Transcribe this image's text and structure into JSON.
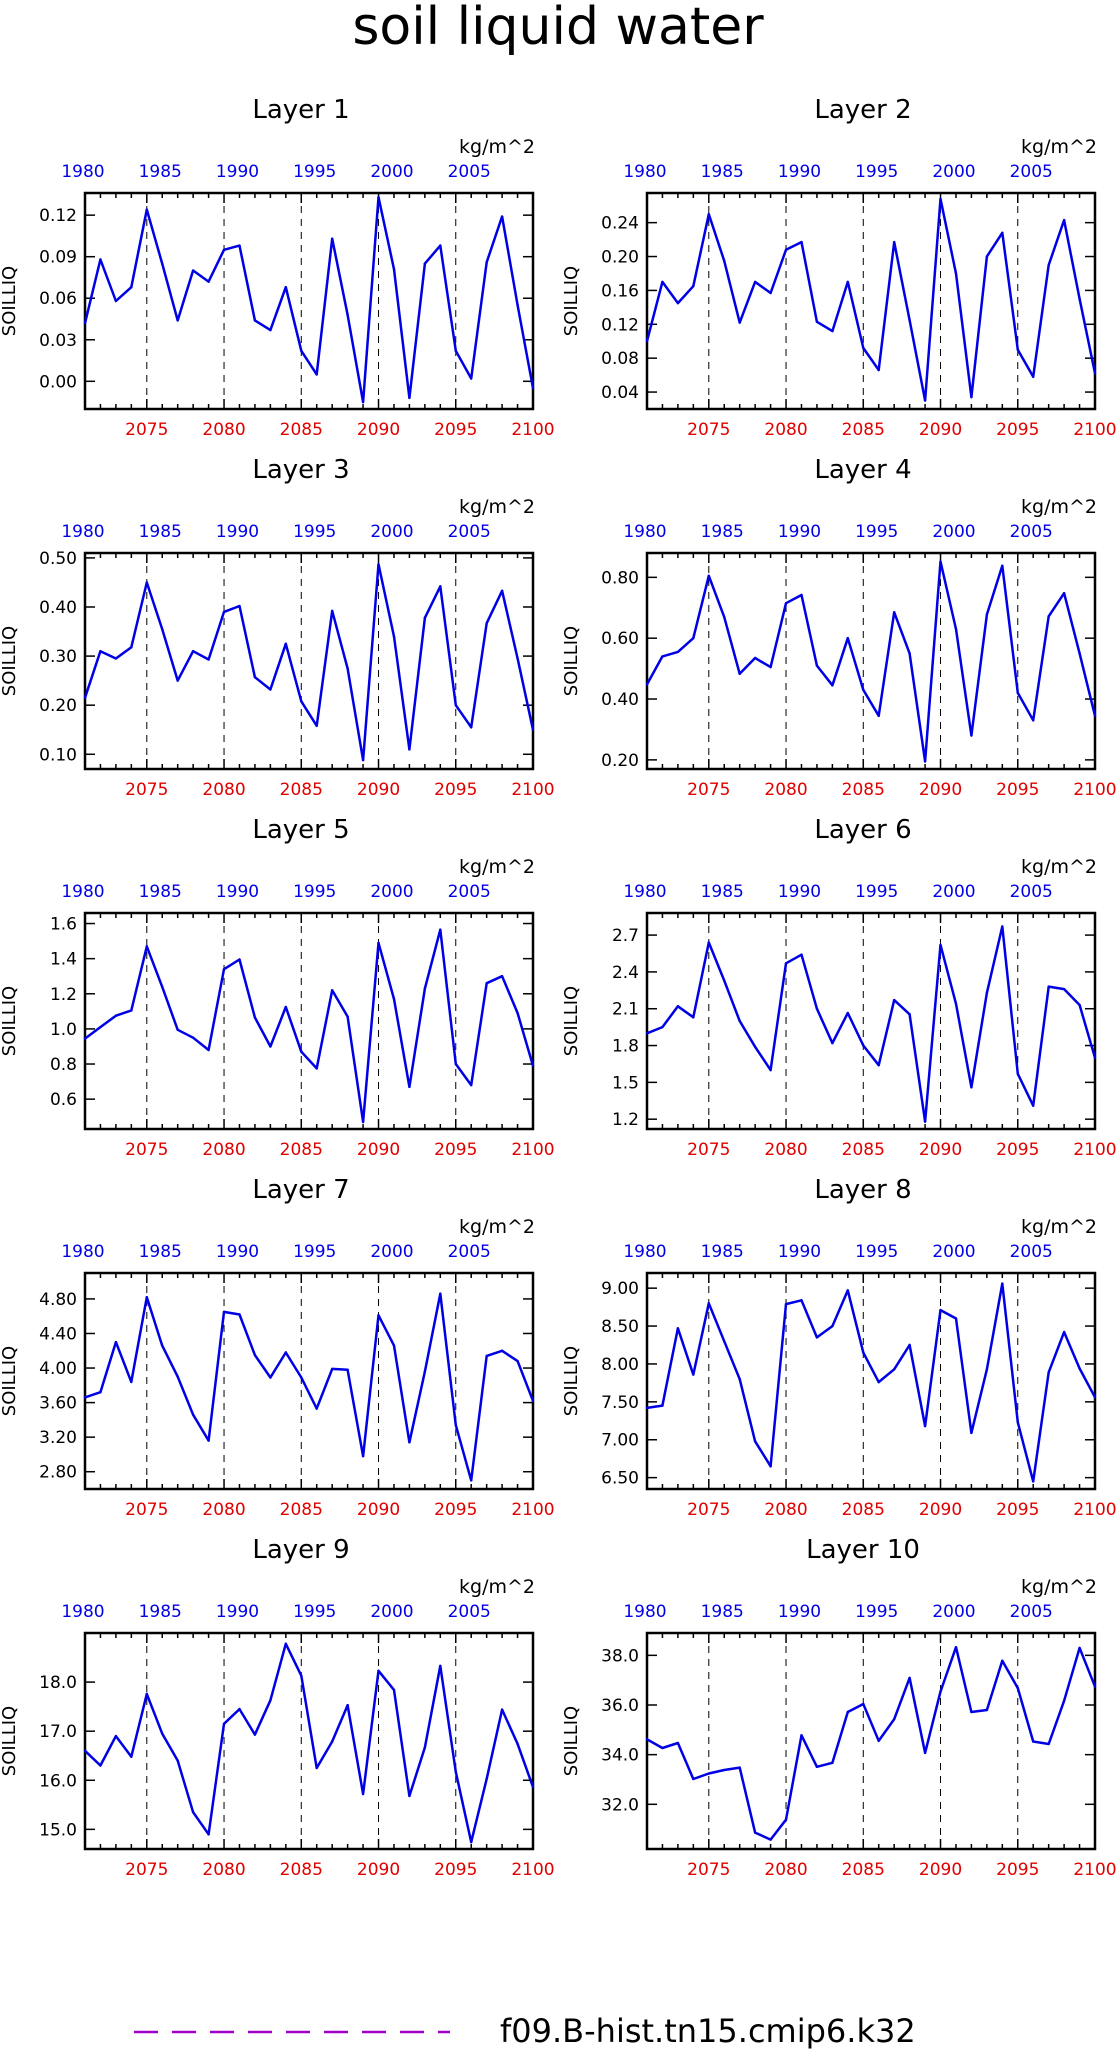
{
  "title": "soil liquid water",
  "legend": {
    "label": "f09.B-hist.tn15.cmip6.k32",
    "color": "#a000c8",
    "position": "bottom"
  },
  "colors": {
    "line": "#0000e6",
    "top_axis": "#0000e6",
    "bottom_axis": "#e00000",
    "frame": "#000000"
  },
  "chart_data": [
    {
      "type": "line",
      "title": "Layer 1",
      "ylabel": "SOILLIQ",
      "units": "kg/m^2",
      "x_bottom_ticks": [
        2075,
        2080,
        2085,
        2090,
        2095,
        2100
      ],
      "x_top_ticks": [
        1980,
        1985,
        1990,
        1995,
        2000,
        2005
      ],
      "xlim": [
        2071,
        2100
      ],
      "ylim": [
        -0.02,
        0.136
      ],
      "yticks": [
        "0.12",
        "0.09",
        "0.06",
        "0.03",
        "0.00"
      ],
      "ytick_values": [
        0.12,
        0.09,
        0.06,
        0.03,
        0.0
      ],
      "x": [
        2071,
        2072,
        2073,
        2074,
        2075,
        2076,
        2077,
        2078,
        2079,
        2080,
        2081,
        2082,
        2083,
        2084,
        2085,
        2086,
        2087,
        2088,
        2089,
        2090,
        2091,
        2092,
        2093,
        2094,
        2095,
        2096,
        2097,
        2098,
        2099,
        2100
      ],
      "values": [
        0.042,
        0.088,
        0.058,
        0.068,
        0.124,
        0.085,
        0.044,
        0.08,
        0.072,
        0.095,
        0.098,
        0.044,
        0.037,
        0.068,
        0.022,
        0.005,
        0.103,
        0.048,
        -0.015,
        0.133,
        0.081,
        -0.012,
        0.085,
        0.098,
        0.022,
        0.002,
        0.086,
        0.119,
        0.055,
        -0.005
      ],
      "dashed_x": [
        2075,
        2080,
        2085,
        2090,
        2095
      ],
      "grid": false
    },
    {
      "type": "line",
      "title": "Layer 2",
      "ylabel": "SOILLIQ",
      "units": "kg/m^2",
      "x_bottom_ticks": [
        2075,
        2080,
        2085,
        2090,
        2095,
        2100
      ],
      "x_top_ticks": [
        1980,
        1985,
        1990,
        1995,
        2000,
        2005
      ],
      "xlim": [
        2071,
        2100
      ],
      "ylim": [
        0.02,
        0.275
      ],
      "yticks": [
        "0.24",
        "0.20",
        "0.16",
        "0.12",
        "0.08",
        "0.04"
      ],
      "ytick_values": [
        0.24,
        0.2,
        0.16,
        0.12,
        0.08,
        0.04
      ],
      "x": [
        2071,
        2072,
        2073,
        2074,
        2075,
        2076,
        2077,
        2078,
        2079,
        2080,
        2081,
        2082,
        2083,
        2084,
        2085,
        2086,
        2087,
        2088,
        2089,
        2090,
        2091,
        2092,
        2093,
        2094,
        2095,
        2096,
        2097,
        2098,
        2099,
        2100
      ],
      "values": [
        0.1,
        0.17,
        0.145,
        0.165,
        0.25,
        0.195,
        0.122,
        0.17,
        0.157,
        0.208,
        0.217,
        0.123,
        0.112,
        0.17,
        0.092,
        0.066,
        0.217,
        0.125,
        0.03,
        0.268,
        0.18,
        0.034,
        0.2,
        0.228,
        0.09,
        0.058,
        0.19,
        0.243,
        0.15,
        0.062
      ],
      "dashed_x": [
        2075,
        2080,
        2085,
        2090,
        2095
      ],
      "grid": false
    },
    {
      "type": "line",
      "title": "Layer 3",
      "ylabel": "SOILLIQ",
      "units": "kg/m^2",
      "x_bottom_ticks": [
        2075,
        2080,
        2085,
        2090,
        2095,
        2100
      ],
      "x_top_ticks": [
        1980,
        1985,
        1990,
        1995,
        2000,
        2005
      ],
      "xlim": [
        2071,
        2100
      ],
      "ylim": [
        0.07,
        0.51
      ],
      "yticks": [
        "0.50",
        "0.40",
        "0.30",
        "0.20",
        "0.10"
      ],
      "ytick_values": [
        0.5,
        0.4,
        0.3,
        0.2,
        0.1
      ],
      "x": [
        2071,
        2072,
        2073,
        2074,
        2075,
        2076,
        2077,
        2078,
        2079,
        2080,
        2081,
        2082,
        2083,
        2084,
        2085,
        2086,
        2087,
        2088,
        2089,
        2090,
        2091,
        2092,
        2093,
        2094,
        2095,
        2096,
        2097,
        2098,
        2099,
        2100
      ],
      "values": [
        0.215,
        0.31,
        0.295,
        0.318,
        0.45,
        0.355,
        0.25,
        0.31,
        0.293,
        0.39,
        0.402,
        0.257,
        0.232,
        0.325,
        0.208,
        0.158,
        0.392,
        0.275,
        0.088,
        0.487,
        0.34,
        0.11,
        0.378,
        0.442,
        0.2,
        0.155,
        0.367,
        0.433,
        0.295,
        0.15
      ],
      "dashed_x": [
        2075,
        2080,
        2085,
        2090,
        2095
      ],
      "grid": false
    },
    {
      "type": "line",
      "title": "Layer 4",
      "ylabel": "SOILLIQ",
      "units": "kg/m^2",
      "x_bottom_ticks": [
        2075,
        2080,
        2085,
        2090,
        2095,
        2100
      ],
      "x_top_ticks": [
        1980,
        1985,
        1990,
        1995,
        2000,
        2005
      ],
      "xlim": [
        2071,
        2100
      ],
      "ylim": [
        0.17,
        0.88
      ],
      "yticks": [
        "0.80",
        "0.60",
        "0.40",
        "0.20"
      ],
      "ytick_values": [
        0.8,
        0.6,
        0.4,
        0.2
      ],
      "x": [
        2071,
        2072,
        2073,
        2074,
        2075,
        2076,
        2077,
        2078,
        2079,
        2080,
        2081,
        2082,
        2083,
        2084,
        2085,
        2086,
        2087,
        2088,
        2089,
        2090,
        2091,
        2092,
        2093,
        2094,
        2095,
        2096,
        2097,
        2098,
        2099,
        2100
      ],
      "values": [
        0.448,
        0.54,
        0.555,
        0.6,
        0.805,
        0.67,
        0.483,
        0.535,
        0.505,
        0.715,
        0.742,
        0.51,
        0.445,
        0.6,
        0.43,
        0.345,
        0.685,
        0.55,
        0.195,
        0.852,
        0.63,
        0.28,
        0.678,
        0.838,
        0.42,
        0.33,
        0.672,
        0.748,
        0.55,
        0.345
      ],
      "dashed_x": [
        2075,
        2080,
        2085,
        2090,
        2095
      ],
      "grid": false
    },
    {
      "type": "line",
      "title": "Layer 5",
      "ylabel": "SOILLIQ",
      "units": "kg/m^2",
      "x_bottom_ticks": [
        2075,
        2080,
        2085,
        2090,
        2095,
        2100
      ],
      "x_top_ticks": [
        1980,
        1985,
        1990,
        1995,
        2000,
        2005
      ],
      "xlim": [
        2071,
        2100
      ],
      "ylim": [
        0.43,
        1.66
      ],
      "yticks": [
        "1.6",
        "1.4",
        "1.2",
        "1.0",
        "0.8",
        "0.6"
      ],
      "ytick_values": [
        1.6,
        1.4,
        1.2,
        1.0,
        0.8,
        0.6
      ],
      "x": [
        2071,
        2072,
        2073,
        2074,
        2075,
        2076,
        2077,
        2078,
        2079,
        2080,
        2081,
        2082,
        2083,
        2084,
        2085,
        2086,
        2087,
        2088,
        2089,
        2090,
        2091,
        2092,
        2093,
        2094,
        2095,
        2096,
        2097,
        2098,
        2099,
        2100
      ],
      "values": [
        0.945,
        1.01,
        1.075,
        1.105,
        1.47,
        1.24,
        0.995,
        0.95,
        0.88,
        1.34,
        1.395,
        1.065,
        0.9,
        1.125,
        0.87,
        0.775,
        1.22,
        1.07,
        0.47,
        1.49,
        1.17,
        0.67,
        1.23,
        1.565,
        0.8,
        0.68,
        1.26,
        1.3,
        1.09,
        0.79
      ],
      "dashed_x": [
        2075,
        2080,
        2085,
        2090,
        2095
      ],
      "grid": false
    },
    {
      "type": "line",
      "title": "Layer 6",
      "ylabel": "SOILLIQ",
      "units": "kg/m^2",
      "x_bottom_ticks": [
        2075,
        2080,
        2085,
        2090,
        2095,
        2100
      ],
      "x_top_ticks": [
        1980,
        1985,
        1990,
        1995,
        2000,
        2005
      ],
      "xlim": [
        2071,
        2100
      ],
      "ylim": [
        1.12,
        2.88
      ],
      "yticks": [
        "2.7",
        "2.4",
        "2.1",
        "1.8",
        "1.5",
        "1.2"
      ],
      "ytick_values": [
        2.7,
        2.4,
        2.1,
        1.8,
        1.5,
        1.2
      ],
      "x": [
        2071,
        2072,
        2073,
        2074,
        2075,
        2076,
        2077,
        2078,
        2079,
        2080,
        2081,
        2082,
        2083,
        2084,
        2085,
        2086,
        2087,
        2088,
        2089,
        2090,
        2091,
        2092,
        2093,
        2094,
        2095,
        2096,
        2097,
        2098,
        2099,
        2100
      ],
      "values": [
        1.9,
        1.95,
        2.12,
        2.03,
        2.64,
        2.33,
        2.0,
        1.79,
        1.6,
        2.47,
        2.54,
        2.1,
        1.82,
        2.065,
        1.8,
        1.64,
        2.17,
        2.055,
        1.18,
        2.62,
        2.14,
        1.46,
        2.23,
        2.77,
        1.57,
        1.31,
        2.28,
        2.26,
        2.13,
        1.7
      ],
      "dashed_x": [
        2075,
        2080,
        2085,
        2090,
        2095
      ],
      "grid": false
    },
    {
      "type": "line",
      "title": "Layer 7",
      "ylabel": "SOILLIQ",
      "units": "kg/m^2",
      "x_bottom_ticks": [
        2075,
        2080,
        2085,
        2090,
        2095,
        2100
      ],
      "x_top_ticks": [
        1980,
        1985,
        1990,
        1995,
        2000,
        2005
      ],
      "xlim": [
        2071,
        2100
      ],
      "ylim": [
        2.6,
        5.1
      ],
      "yticks": [
        "4.80",
        "4.40",
        "4.00",
        "3.60",
        "3.20",
        "2.80"
      ],
      "ytick_values": [
        4.8,
        4.4,
        4.0,
        3.6,
        3.2,
        2.8
      ],
      "x": [
        2071,
        2072,
        2073,
        2074,
        2075,
        2076,
        2077,
        2078,
        2079,
        2080,
        2081,
        2082,
        2083,
        2084,
        2085,
        2086,
        2087,
        2088,
        2089,
        2090,
        2091,
        2092,
        2093,
        2094,
        2095,
        2096,
        2097,
        2098,
        2099,
        2100
      ],
      "values": [
        3.66,
        3.72,
        4.3,
        3.84,
        4.82,
        4.26,
        3.9,
        3.46,
        3.16,
        4.65,
        4.62,
        4.15,
        3.89,
        4.18,
        3.89,
        3.53,
        3.99,
        3.98,
        2.98,
        4.61,
        4.26,
        3.14,
        3.96,
        4.86,
        3.34,
        2.7,
        4.14,
        4.2,
        4.08,
        3.62
      ],
      "dashed_x": [
        2075,
        2080,
        2085,
        2090,
        2095
      ],
      "grid": false
    },
    {
      "type": "line",
      "title": "Layer 8",
      "ylabel": "SOILLIQ",
      "units": "kg/m^2",
      "x_bottom_ticks": [
        2075,
        2080,
        2085,
        2090,
        2095,
        2100
      ],
      "x_top_ticks": [
        1980,
        1985,
        1990,
        1995,
        2000,
        2005
      ],
      "xlim": [
        2071,
        2100
      ],
      "ylim": [
        6.35,
        9.2
      ],
      "yticks": [
        "9.00",
        "8.50",
        "8.00",
        "7.50",
        "7.00",
        "6.50"
      ],
      "ytick_values": [
        9.0,
        8.5,
        8.0,
        7.5,
        7.0,
        6.5
      ],
      "x": [
        2071,
        2072,
        2073,
        2074,
        2075,
        2076,
        2077,
        2078,
        2079,
        2080,
        2081,
        2082,
        2083,
        2084,
        2085,
        2086,
        2087,
        2088,
        2089,
        2090,
        2091,
        2092,
        2093,
        2094,
        2095,
        2096,
        2097,
        2098,
        2099,
        2100
      ],
      "values": [
        7.42,
        7.45,
        8.47,
        7.86,
        8.8,
        8.3,
        7.8,
        6.98,
        6.65,
        8.79,
        8.84,
        8.35,
        8.5,
        8.97,
        8.15,
        7.76,
        7.93,
        8.25,
        7.18,
        8.71,
        8.6,
        7.09,
        7.93,
        9.06,
        7.23,
        6.45,
        7.89,
        8.42,
        7.94,
        7.56
      ],
      "dashed_x": [
        2075,
        2080,
        2085,
        2090,
        2095
      ],
      "grid": false
    },
    {
      "type": "line",
      "title": "Layer 9",
      "ylabel": "SOILLIQ",
      "units": "kg/m^2",
      "x_bottom_ticks": [
        2075,
        2080,
        2085,
        2090,
        2095,
        2100
      ],
      "x_top_ticks": [
        1980,
        1985,
        1990,
        1995,
        2000,
        2005
      ],
      "xlim": [
        2071,
        2100
      ],
      "ylim": [
        14.6,
        19.0
      ],
      "yticks": [
        "18.0",
        "17.0",
        "16.0",
        "15.0"
      ],
      "ytick_values": [
        18.0,
        17.0,
        16.0,
        15.0
      ],
      "x": [
        2071,
        2072,
        2073,
        2074,
        2075,
        2076,
        2077,
        2078,
        2079,
        2080,
        2081,
        2082,
        2083,
        2084,
        2085,
        2086,
        2087,
        2088,
        2089,
        2090,
        2091,
        2092,
        2093,
        2094,
        2095,
        2096,
        2097,
        2098,
        2099,
        2100
      ],
      "values": [
        16.6,
        16.3,
        16.9,
        16.48,
        17.76,
        16.95,
        16.4,
        15.35,
        14.9,
        17.15,
        17.45,
        16.93,
        17.63,
        18.78,
        18.13,
        16.25,
        16.79,
        17.53,
        15.72,
        18.23,
        17.84,
        15.68,
        16.67,
        18.33,
        16.17,
        14.74,
        16.03,
        17.44,
        16.74,
        15.86
      ],
      "dashed_x": [
        2075,
        2080,
        2085,
        2090,
        2095
      ],
      "grid": false
    },
    {
      "type": "line",
      "title": "Layer 10",
      "ylabel": "SOILLIQ",
      "units": "kg/m^2",
      "x_bottom_ticks": [
        2075,
        2080,
        2085,
        2090,
        2095,
        2100
      ],
      "x_top_ticks": [
        1980,
        1985,
        1990,
        1995,
        2000,
        2005
      ],
      "xlim": [
        2071,
        2100
      ],
      "ylim": [
        30.2,
        38.9
      ],
      "yticks": [
        "38.0",
        "36.0",
        "34.0",
        "32.0"
      ],
      "ytick_values": [
        38.0,
        36.0,
        34.0,
        32.0
      ],
      "x": [
        2071,
        2072,
        2073,
        2074,
        2075,
        2076,
        2077,
        2078,
        2079,
        2080,
        2081,
        2082,
        2083,
        2084,
        2085,
        2086,
        2087,
        2088,
        2089,
        2090,
        2091,
        2092,
        2093,
        2094,
        2095,
        2096,
        2097,
        2098,
        2099,
        2100
      ],
      "values": [
        34.62,
        34.27,
        34.47,
        33.02,
        33.24,
        33.38,
        33.48,
        30.86,
        30.58,
        31.38,
        34.78,
        33.51,
        33.67,
        35.72,
        36.04,
        34.56,
        35.43,
        37.09,
        34.07,
        36.54,
        38.33,
        35.72,
        35.8,
        37.78,
        36.68,
        34.53,
        34.43,
        36.17,
        38.3,
        36.74
      ],
      "dashed_x": [
        2075,
        2080,
        2085,
        2090,
        2095
      ],
      "grid": false
    }
  ]
}
